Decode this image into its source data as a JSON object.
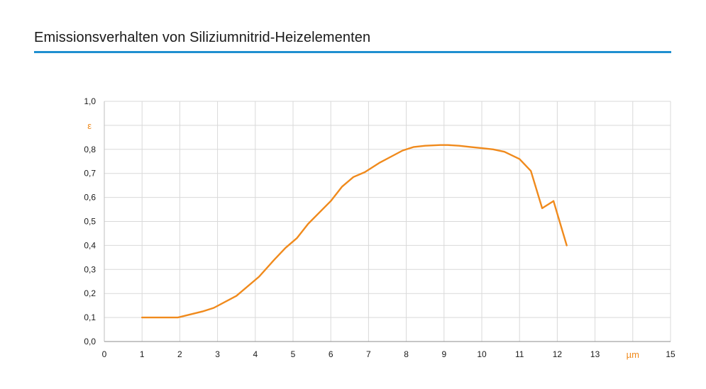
{
  "title": "Emissionsverhalten von Siliziumnitrid-Heizelementen",
  "colors": {
    "rule": "#1f8fd0",
    "line": "#f08a1c",
    "grid": "#d9d9d9"
  },
  "chart_data": {
    "type": "line",
    "title": "Emissionsverhalten von Siliziumnitrid-Heizelementen",
    "xlabel": "µm",
    "ylabel": "ε",
    "xlim": [
      0,
      15
    ],
    "ylim": [
      0,
      1.0
    ],
    "grid": true,
    "x_ticks": [
      "0",
      "1",
      "2",
      "3",
      "4",
      "5",
      "6",
      "7",
      "8",
      "9",
      "10",
      "11",
      "12",
      "13",
      "15"
    ],
    "y_ticks": [
      "0,0",
      "0,1",
      "0,2",
      "0,3",
      "0,4",
      "0,5",
      "0,6",
      "0,7",
      "0,8",
      "1,0"
    ],
    "series": [
      {
        "x": [
          1,
          1.95,
          2.6,
          2.9,
          3.5,
          4.1,
          4.5,
          4.8,
          5.1,
          5.4,
          6.0,
          6.3,
          6.6,
          6.9,
          7.3,
          7.6,
          7.9,
          8.2,
          8.5,
          8.9,
          9.1,
          9.4,
          9.7,
          10.0,
          10.3,
          10.6,
          11.0,
          11.3,
          11.6,
          11.9,
          12.25
        ],
        "y": [
          0.1,
          0.1,
          0.125,
          0.14,
          0.19,
          0.27,
          0.34,
          0.39,
          0.43,
          0.49,
          0.585,
          0.645,
          0.685,
          0.705,
          0.745,
          0.77,
          0.795,
          0.81,
          0.815,
          0.818,
          0.818,
          0.815,
          0.81,
          0.805,
          0.8,
          0.79,
          0.76,
          0.71,
          0.555,
          0.585,
          0.4
        ]
      }
    ]
  }
}
